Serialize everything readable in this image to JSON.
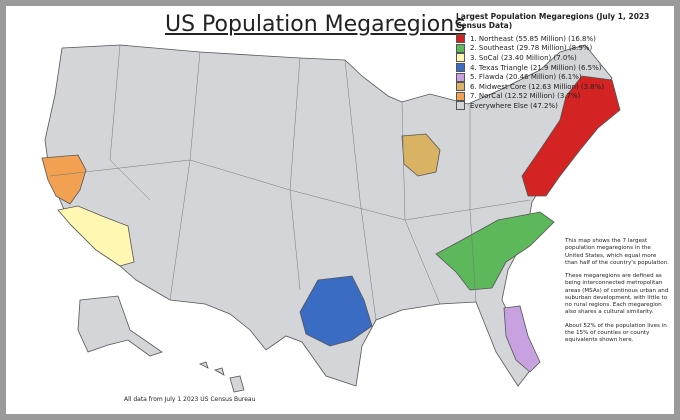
{
  "title": "US Population Megaregions",
  "legend": {
    "title": "Largest Population Megaregions (July 1, 2023 Census Data)",
    "items": [
      {
        "label": "1. Northeast (55.85 Million) (16.8%)",
        "color": "#d42323"
      },
      {
        "label": "2. Southeast (29.78 Million) (8.9%)",
        "color": "#5cb85a"
      },
      {
        "label": "3. SoCal (23.40 Million) (7.0%)",
        "color": "#fff7b2"
      },
      {
        "label": "4. Texas Triangle (21.9 Million) (6.5%)",
        "color": "#3a6cc4"
      },
      {
        "label": "5. Flawda (20.46 Million) (6.1%)",
        "color": "#c8a2e0"
      },
      {
        "label": "6. Midwest Core (12.63 Million) (3.8%)",
        "color": "#d9b263"
      },
      {
        "label": "7. NorCal (12.52 Million) (3.7%)",
        "color": "#f2a153"
      },
      {
        "label": "Everywhere Else (47.2%)",
        "color": "#d3d5d8"
      }
    ]
  },
  "notes": [
    "This map shows the 7 largest population megaregions in the United States, which equal more than half of the country's population.",
    "These megaregions are defined as being interconnected metropolitan areas (MSAs) of continous urban and suburban development, with little to no rural regions. Each megaregion also shares a cultural similarity.",
    "About 52% of the population lives in the 15% of counties or county equivalents shown here."
  ],
  "footer": "All data from July 1 2023 US Census Bureau"
}
